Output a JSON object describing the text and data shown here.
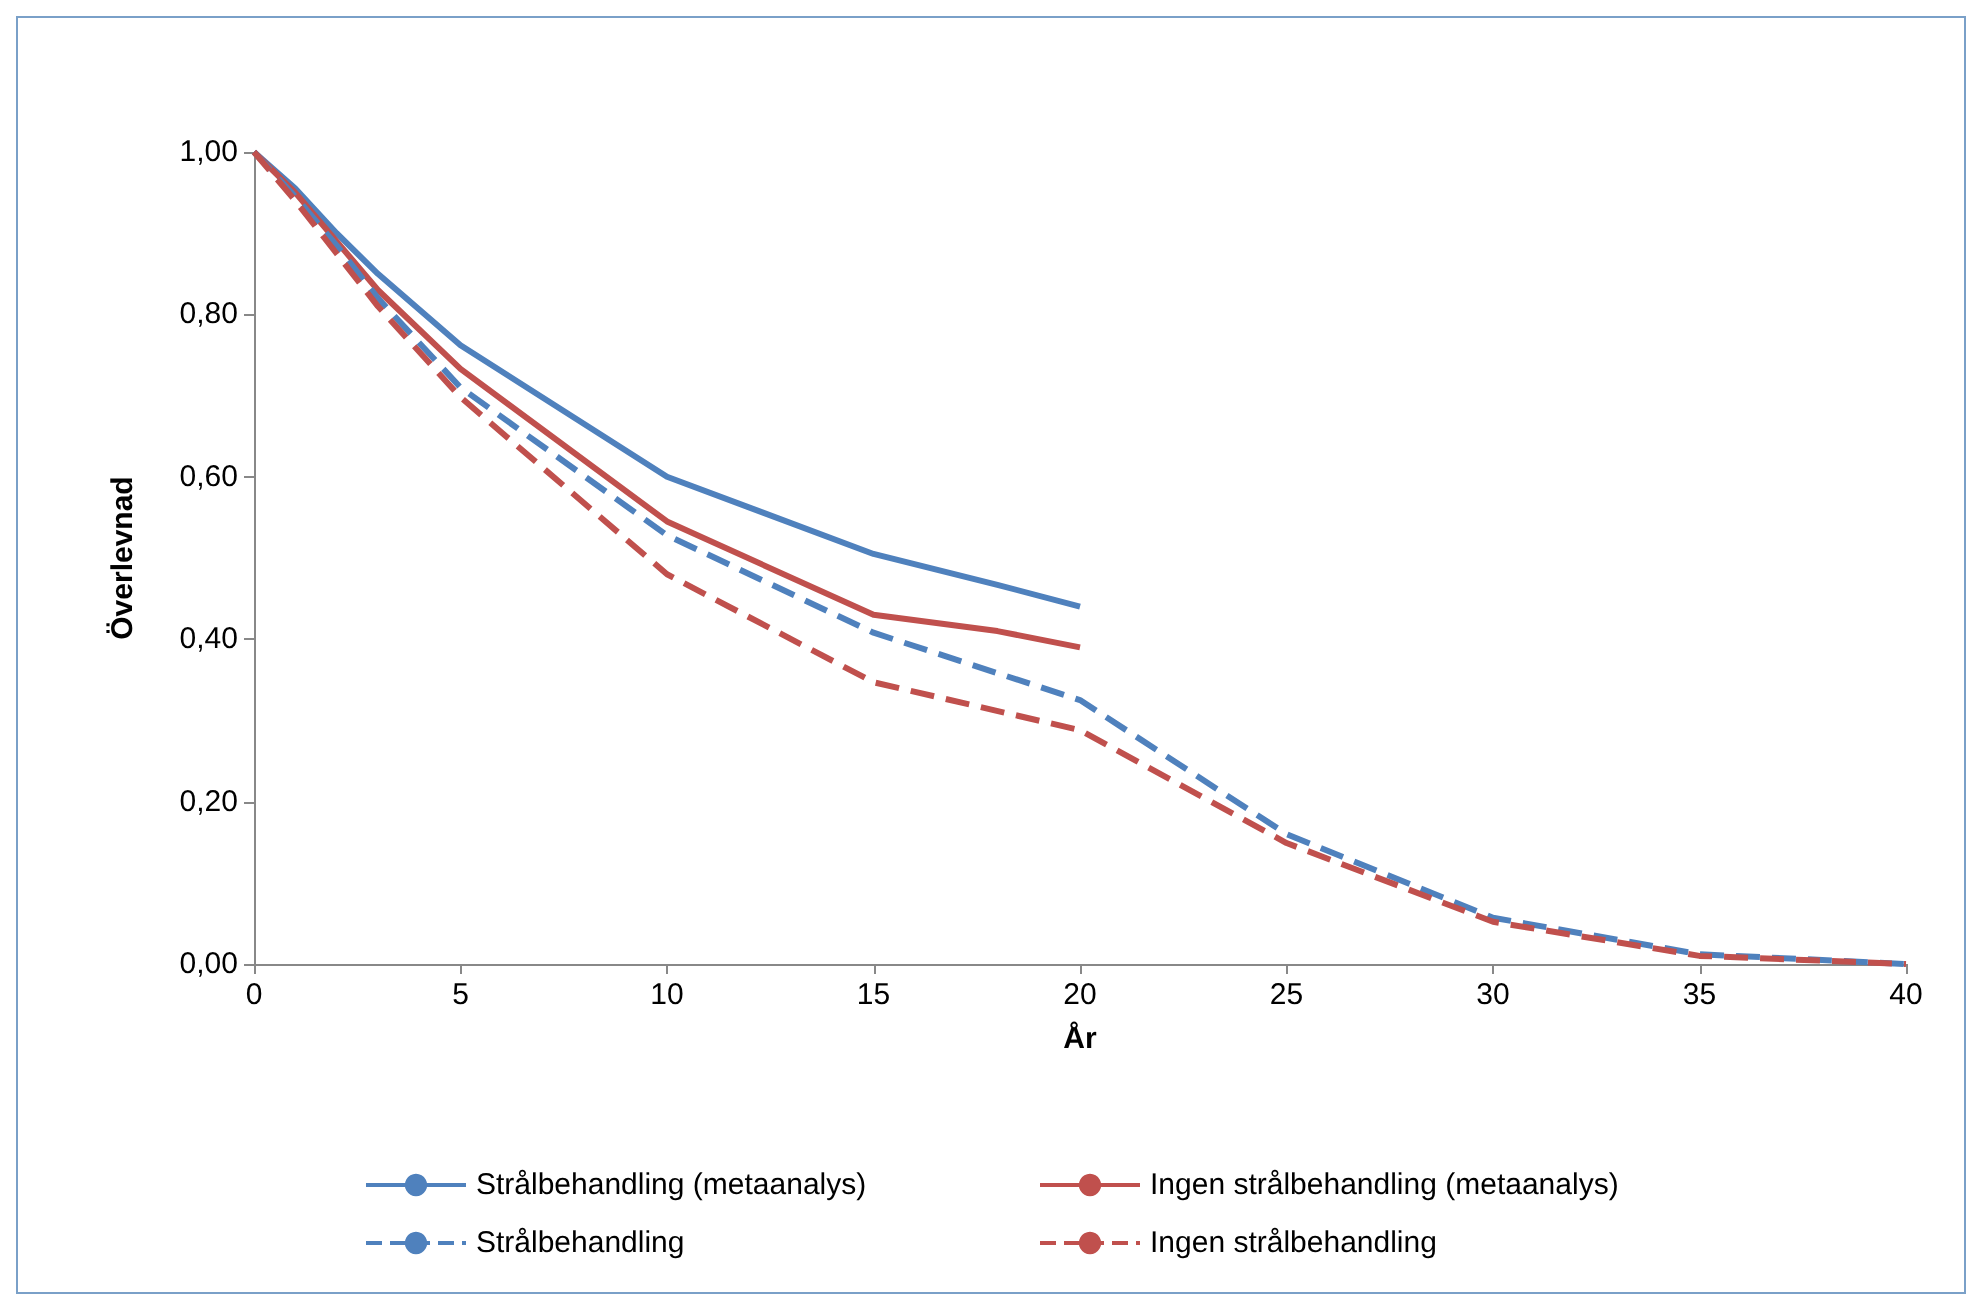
{
  "chart_data": {
    "type": "line",
    "xlabel": "År",
    "ylabel": "Överlevnad",
    "xlim": [
      0,
      40
    ],
    "xticks": [
      0,
      5,
      10,
      15,
      20,
      25,
      30,
      35,
      40
    ],
    "ylim": [
      0,
      1
    ],
    "yticks": [
      {
        "value": 0,
        "label": "0,00"
      },
      {
        "value": 0.2,
        "label": "0,20"
      },
      {
        "value": 0.4,
        "label": "0,40"
      },
      {
        "value": 0.6,
        "label": "0,60"
      },
      {
        "value": 0.8,
        "label": "0,80"
      },
      {
        "value": 1,
        "label": "1,00"
      }
    ],
    "grid": false,
    "legend": "bottom",
    "marker": "none",
    "series": [
      {
        "name": "Strålbehandling (metaanalys)",
        "color": "#4f81bd",
        "line_style": "solid",
        "x": [
          0,
          1,
          2,
          3,
          5,
          10,
          15,
          18,
          20
        ],
        "values": [
          1,
          0.955,
          0.9,
          0.85,
          0.762,
          0.6,
          0.505,
          0.467,
          0.44
        ]
      },
      {
        "name": "Ingen strålbehandling (metaanalys)",
        "color": "#c0504d",
        "line_style": "solid",
        "x": [
          0,
          1,
          2,
          3,
          5,
          10,
          15,
          18,
          20
        ],
        "values": [
          1,
          0.95,
          0.89,
          0.83,
          0.733,
          0.545,
          0.43,
          0.41,
          0.39
        ]
      },
      {
        "name": "Strålbehandling",
        "color": "#4f81bd",
        "line_style": "dashed",
        "x": [
          0,
          1,
          2,
          3,
          5,
          10,
          15,
          20,
          25,
          30,
          35,
          40
        ],
        "values": [
          1,
          0.945,
          0.885,
          0.82,
          0.71,
          0.528,
          0.408,
          0.325,
          0.16,
          0.057,
          0.012,
          0
        ]
      },
      {
        "name": "Ingen strålbehandling",
        "color": "#c0504d",
        "line_style": "dashed",
        "x": [
          0,
          1,
          2,
          3,
          5,
          10,
          15,
          20,
          25,
          30,
          35,
          40
        ],
        "values": [
          1,
          0.94,
          0.875,
          0.81,
          0.698,
          0.48,
          0.347,
          0.288,
          0.149,
          0.052,
          0.01,
          0
        ]
      }
    ]
  }
}
